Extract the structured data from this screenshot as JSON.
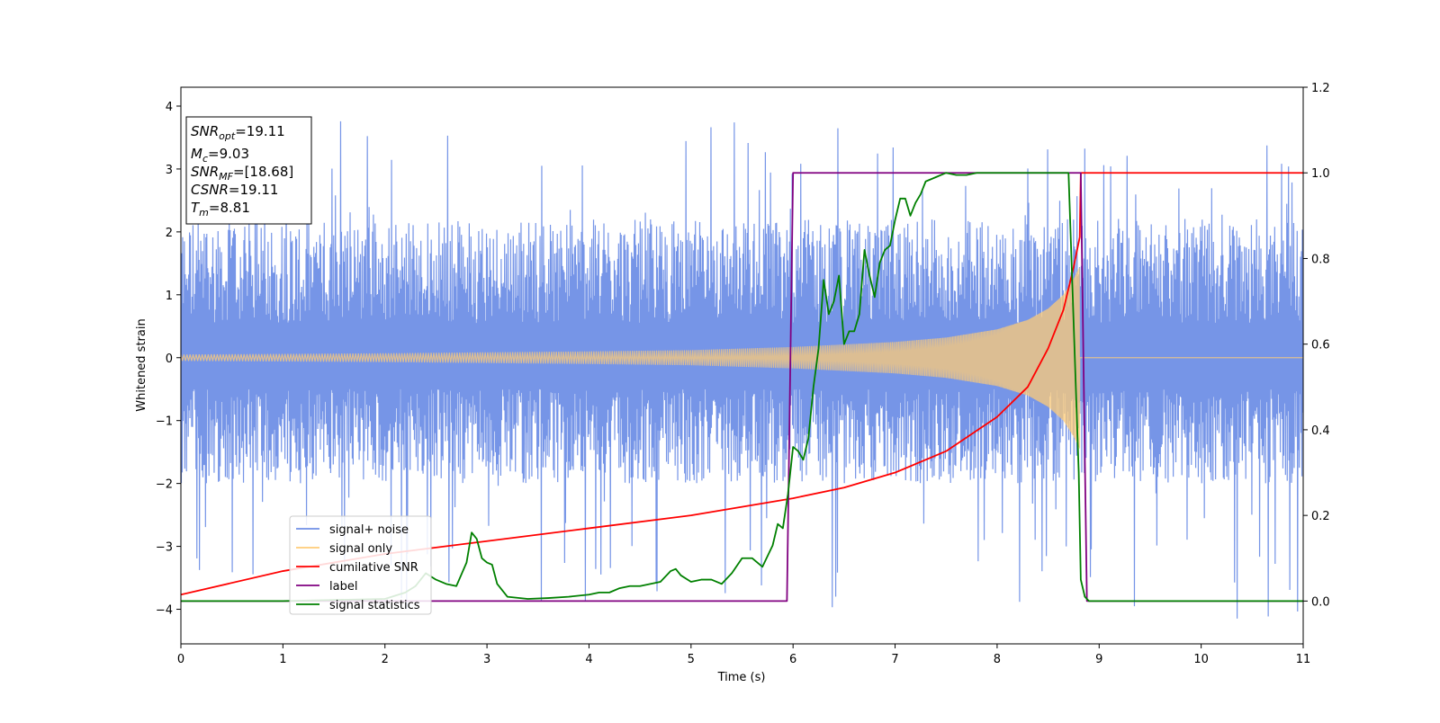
{
  "chart_data": {
    "type": "line",
    "xlabel": "Time (s)",
    "ylabel": "Whitened strain",
    "xlim": [
      0,
      11
    ],
    "ylim_left": [
      -4.55,
      4.3
    ],
    "ylim_right": [
      -0.1,
      1.2
    ],
    "x_ticks": [
      "0",
      "1",
      "2",
      "3",
      "4",
      "5",
      "6",
      "7",
      "8",
      "9",
      "10",
      "11"
    ],
    "y_left_ticks": [
      "−4",
      "−3",
      "−2",
      "−1",
      "0",
      "1",
      "2",
      "3",
      "4"
    ],
    "y_right_ticks": [
      "0.0",
      "0.2",
      "0.4",
      "0.6",
      "0.8",
      "1.0",
      "1.2"
    ],
    "annotation": {
      "lines": [
        {
          "var": "SNR",
          "sub": "opt",
          "value": "=19.11"
        },
        {
          "var": "M",
          "sub": "c",
          "value": "=9.03"
        },
        {
          "var": "SNR",
          "sub": "MF",
          "value": "=[18.68]"
        },
        {
          "var": "CSNR",
          "sub": "",
          "value": "=19.11"
        },
        {
          "var": "T",
          "sub": "m",
          "value": "=8.81"
        }
      ]
    },
    "legend": {
      "placement": "lower-left",
      "entries": [
        {
          "label": "signal+ noise",
          "color": "#6f8fe6"
        },
        {
          "label": "signal only",
          "color": "#ffcc77"
        },
        {
          "label": "cumilative SNR",
          "color": "#ff0000"
        },
        {
          "label": "label",
          "color": "#800080"
        },
        {
          "label": "signal statistics",
          "color": "#008000"
        }
      ]
    },
    "series": [
      {
        "name": "signal+ noise",
        "axis": "left",
        "kind": "noise-envelope",
        "color": "#6f8fe6",
        "typical_range": [
          -2.0,
          2.2
        ],
        "extreme_range": [
          -4.15,
          3.9
        ]
      },
      {
        "name": "signal only",
        "axis": "left",
        "kind": "chirp-envelope",
        "color": "#ffcc77",
        "x": [
          0,
          2,
          4,
          5,
          6,
          7,
          7.5,
          8,
          8.3,
          8.5,
          8.65,
          8.75,
          8.81,
          8.82,
          11
        ],
        "amplitude": [
          0.05,
          0.07,
          0.1,
          0.12,
          0.17,
          0.25,
          0.32,
          0.45,
          0.6,
          0.78,
          1.0,
          1.25,
          1.45,
          0,
          0
        ]
      },
      {
        "name": "cumilative SNR",
        "axis": "right",
        "color": "#ff0000",
        "x": [
          0,
          1,
          2,
          3,
          4,
          5,
          6,
          6.5,
          7,
          7.5,
          8,
          8.3,
          8.5,
          8.65,
          8.75,
          8.81,
          8.82,
          11
        ],
        "y": [
          0.015,
          0.07,
          0.11,
          0.14,
          0.17,
          0.2,
          0.24,
          0.265,
          0.3,
          0.35,
          0.43,
          0.5,
          0.59,
          0.68,
          0.78,
          0.85,
          1.0,
          1.0
        ]
      },
      {
        "name": "label",
        "axis": "right",
        "color": "#800080",
        "x": [
          0,
          5.94,
          6.0,
          8.82,
          8.88,
          11
        ],
        "y": [
          0.0,
          0.0,
          1.0,
          1.0,
          0.0,
          0.0
        ]
      },
      {
        "name": "signal statistics",
        "axis": "right",
        "color": "#008000",
        "x": [
          0,
          1.0,
          2.0,
          2.2,
          2.3,
          2.4,
          2.5,
          2.6,
          2.7,
          2.8,
          2.85,
          2.9,
          2.95,
          3.0,
          3.05,
          3.1,
          3.2,
          3.4,
          3.6,
          3.8,
          4.0,
          4.1,
          4.2,
          4.3,
          4.4,
          4.5,
          4.6,
          4.7,
          4.8,
          4.85,
          4.9,
          5.0,
          5.1,
          5.2,
          5.3,
          5.4,
          5.5,
          5.6,
          5.7,
          5.8,
          5.85,
          5.9,
          5.95,
          6.0,
          6.05,
          6.1,
          6.15,
          6.2,
          6.25,
          6.3,
          6.35,
          6.4,
          6.45,
          6.5,
          6.55,
          6.6,
          6.65,
          6.7,
          6.75,
          6.8,
          6.85,
          6.9,
          6.95,
          7.0,
          7.05,
          7.1,
          7.15,
          7.2,
          7.25,
          7.3,
          7.4,
          7.5,
          7.6,
          7.7,
          7.8,
          8.0,
          8.3,
          8.6,
          8.7,
          8.75,
          8.8,
          8.82,
          8.86,
          8.9,
          9.5,
          11
        ],
        "y": [
          0.0,
          0.0,
          0.005,
          0.02,
          0.035,
          0.065,
          0.05,
          0.04,
          0.035,
          0.09,
          0.16,
          0.145,
          0.1,
          0.09,
          0.085,
          0.04,
          0.01,
          0.005,
          0.007,
          0.01,
          0.015,
          0.02,
          0.02,
          0.03,
          0.035,
          0.035,
          0.04,
          0.045,
          0.07,
          0.075,
          0.06,
          0.045,
          0.05,
          0.05,
          0.04,
          0.065,
          0.1,
          0.1,
          0.08,
          0.13,
          0.18,
          0.17,
          0.25,
          0.36,
          0.35,
          0.33,
          0.38,
          0.5,
          0.59,
          0.75,
          0.67,
          0.7,
          0.76,
          0.6,
          0.63,
          0.63,
          0.67,
          0.82,
          0.76,
          0.71,
          0.79,
          0.82,
          0.83,
          0.89,
          0.94,
          0.94,
          0.9,
          0.93,
          0.95,
          0.98,
          0.99,
          1.0,
          0.995,
          0.995,
          1.0,
          1.0,
          1.0,
          1.0,
          1.0,
          0.65,
          0.3,
          0.05,
          0.01,
          0.0,
          0.0,
          0.0
        ]
      }
    ]
  }
}
